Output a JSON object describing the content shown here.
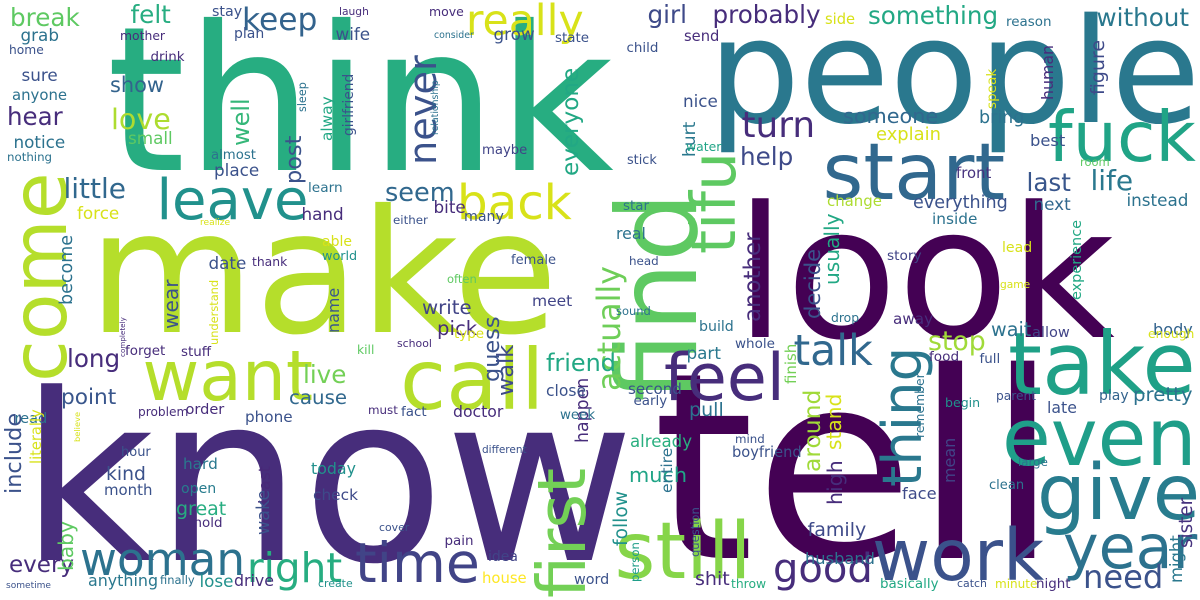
{
  "palette": [
    "#440154",
    "#3b528b",
    "#21918c",
    "#27ad81",
    "#5ec962",
    "#addc30",
    "#fde725"
  ],
  "words": [
    {
      "text": "think",
      "color": "#27ad81"
    },
    {
      "text": "people",
      "color": "#2a788e"
    },
    {
      "text": "make",
      "color": "#b5de2b"
    },
    {
      "text": "look",
      "color": "#440154"
    },
    {
      "text": "know",
      "color": "#472d7b"
    },
    {
      "text": "tell",
      "color": "#440154"
    },
    {
      "text": "start",
      "color": "#31688e"
    },
    {
      "text": "fuck",
      "color": "#20a486"
    },
    {
      "text": "take",
      "color": "#1fa187"
    },
    {
      "text": "even",
      "color": "#1f9e89"
    },
    {
      "text": "come",
      "color": "#b5de2b"
    },
    {
      "text": "call",
      "color": "#b5de2b"
    },
    {
      "text": "want",
      "color": "#b5de2b"
    },
    {
      "text": "find",
      "color": "#5ec962"
    },
    {
      "text": "work",
      "color": "#3b528b"
    },
    {
      "text": "give",
      "color": "#287c8e"
    },
    {
      "text": "still",
      "color": "#86d549"
    },
    {
      "text": "time",
      "color": "#414487"
    },
    {
      "text": "woman",
      "color": "#2c728e"
    },
    {
      "text": "year",
      "color": "#2c728e"
    },
    {
      "text": "first",
      "color": "#73d056"
    },
    {
      "text": "tifu",
      "color": "#5ec962"
    },
    {
      "text": "feel",
      "color": "#472d7b"
    },
    {
      "text": "never",
      "color": "#3b528b"
    },
    {
      "text": "back",
      "color": "#d8e219"
    },
    {
      "text": "leave",
      "color": "#21918c"
    },
    {
      "text": "thing",
      "color": "#2a788e"
    },
    {
      "text": "good",
      "color": "#472d7b"
    },
    {
      "text": "need",
      "color": "#3b528b"
    },
    {
      "text": "right",
      "color": "#27ad81"
    },
    {
      "text": "really",
      "color": "#d8e219"
    },
    {
      "text": "keep",
      "color": "#33638d"
    },
    {
      "text": "actually",
      "color": "#6ece58"
    },
    {
      "text": "talk",
      "color": "#31688e"
    },
    {
      "text": "stop",
      "color": "#a0da39"
    },
    {
      "text": "turn",
      "color": "#472d7b"
    },
    {
      "text": "seem",
      "color": "#31688e"
    },
    {
      "text": "much",
      "color": "#20a486"
    },
    {
      "text": "walk",
      "color": "#3e4a89"
    },
    {
      "text": "something",
      "color": "#22a884"
    },
    {
      "text": "without",
      "color": "#2a788e"
    },
    {
      "text": "probably",
      "color": "#472d7b"
    },
    {
      "text": "decide",
      "color": "#3b528b"
    },
    {
      "text": "another",
      "color": "#472d7b"
    },
    {
      "text": "around",
      "color": "#a0da39"
    },
    {
      "text": "someone",
      "color": "#31688e"
    },
    {
      "text": "love",
      "color": "#addc30"
    },
    {
      "text": "show",
      "color": "#33638d"
    },
    {
      "text": "friend",
      "color": "#22a884"
    },
    {
      "text": "little",
      "color": "#31688e"
    },
    {
      "text": "last",
      "color": "#39568c"
    },
    {
      "text": "life",
      "color": "#2a788e"
    },
    {
      "text": "mean",
      "color": "#414487"
    },
    {
      "text": "point",
      "color": "#39568c"
    },
    {
      "text": "cause",
      "color": "#31688e"
    },
    {
      "text": "live",
      "color": "#73d056"
    },
    {
      "text": "long",
      "color": "#472d7b"
    },
    {
      "text": "felt",
      "color": "#27ad81"
    },
    {
      "text": "girl",
      "color": "#3e4a89"
    },
    {
      "text": "help",
      "color": "#3e4a89"
    },
    {
      "text": "well",
      "color": "#35b779"
    },
    {
      "text": "alway",
      "color": "#22a884"
    },
    {
      "text": "name",
      "color": "#39568c"
    },
    {
      "text": "become",
      "color": "#2c728e"
    },
    {
      "text": "everyone",
      "color": "#22a884"
    },
    {
      "text": "happen",
      "color": "#472d7b"
    },
    {
      "text": "break",
      "color": "#5ec962"
    },
    {
      "text": "hear",
      "color": "#472d7b"
    },
    {
      "text": "every",
      "color": "#472d7b"
    },
    {
      "text": "everything",
      "color": "#3b528b"
    },
    {
      "text": "instead",
      "color": "#2c728e"
    },
    {
      "text": "next",
      "color": "#31688e"
    },
    {
      "text": "body",
      "color": "#33638d"
    },
    {
      "text": "wait",
      "color": "#2c728e"
    },
    {
      "text": "away",
      "color": "#472d7b"
    },
    {
      "text": "already",
      "color": "#29af7f"
    },
    {
      "text": "husband",
      "color": "#2c728e"
    },
    {
      "text": "family",
      "color": "#3e4a89"
    },
    {
      "text": "boyfriend",
      "color": "#3b528b"
    },
    {
      "text": "pretty",
      "color": "#2c728e"
    },
    {
      "text": "play",
      "color": "#33638d"
    },
    {
      "text": "second",
      "color": "#3b528b"
    },
    {
      "text": "write",
      "color": "#414487"
    },
    {
      "text": "pick",
      "color": "#472d7b"
    },
    {
      "text": "meet",
      "color": "#414487"
    },
    {
      "text": "maybe",
      "color": "#414487"
    },
    {
      "text": "kind",
      "color": "#3b528b"
    },
    {
      "text": "great",
      "color": "#27ad81"
    },
    {
      "text": "check",
      "color": "#3e4a89"
    },
    {
      "text": "today",
      "color": "#21918c"
    },
    {
      "text": "phone",
      "color": "#3b528b"
    },
    {
      "text": "open",
      "color": "#287c8e"
    },
    {
      "text": "hard",
      "color": "#2a788e"
    },
    {
      "text": "month",
      "color": "#3b528b"
    },
    {
      "text": "least",
      "color": "#482878"
    },
    {
      "text": "week",
      "color": "#2c728e"
    },
    {
      "text": "close",
      "color": "#3b528b"
    },
    {
      "text": "pull",
      "color": "#2c728e"
    },
    {
      "text": "part",
      "color": "#2a788e"
    },
    {
      "text": "whole",
      "color": "#3b528b"
    },
    {
      "text": "real",
      "color": "#2c728e"
    },
    {
      "text": "head",
      "color": "#3b528b"
    },
    {
      "text": "begin",
      "color": "#21918c"
    },
    {
      "text": "late",
      "color": "#3b528b"
    },
    {
      "text": "parent",
      "color": "#3b528b"
    },
    {
      "text": "face",
      "color": "#3e4a89"
    },
    {
      "text": "idea",
      "color": "#414487"
    },
    {
      "text": "house",
      "color": "#fde725"
    },
    {
      "text": "word",
      "color": "#3b528b"
    },
    {
      "text": "person",
      "color": "#1f9e89"
    },
    {
      "text": "shit",
      "color": "#472d7b"
    },
    {
      "text": "anything",
      "color": "#2a788e"
    },
    {
      "text": "lose",
      "color": "#21918c"
    },
    {
      "text": "drive",
      "color": "#472d7b"
    },
    {
      "text": "create",
      "color": "#21918c"
    },
    {
      "text": "throw",
      "color": "#27ad81"
    },
    {
      "text": "basically",
      "color": "#22a884"
    },
    {
      "text": "catch",
      "color": "#3b528b"
    },
    {
      "text": "minute",
      "color": "#d8e219"
    },
    {
      "text": "night",
      "color": "#472d7b"
    },
    {
      "text": "might",
      "color": "#2a788e"
    },
    {
      "text": "sister",
      "color": "#46327e"
    },
    {
      "text": "experience",
      "color": "#22a884"
    },
    {
      "text": "story",
      "color": "#414487"
    },
    {
      "text": "inside",
      "color": "#2c728e"
    },
    {
      "text": "front",
      "color": "#46327e"
    },
    {
      "text": "room",
      "color": "#5ec962"
    },
    {
      "text": "best",
      "color": "#3b528b"
    },
    {
      "text": "bring",
      "color": "#2c728e"
    },
    {
      "text": "figure",
      "color": "#3e4a89"
    },
    {
      "text": "human",
      "color": "#472d7b"
    },
    {
      "text": "explain",
      "color": "#d8e219"
    },
    {
      "text": "change",
      "color": "#addc30"
    },
    {
      "text": "usually",
      "color": "#22a884"
    },
    {
      "text": "drop",
      "color": "#2c728e"
    },
    {
      "text": "lead",
      "color": "#d8e219"
    },
    {
      "text": "game",
      "color": "#d8e219"
    },
    {
      "text": "allow",
      "color": "#414487"
    },
    {
      "text": "enough",
      "color": "#d8e219"
    },
    {
      "text": "food",
      "color": "#472d7b"
    },
    {
      "text": "full",
      "color": "#3b528b"
    },
    {
      "text": "finish",
      "color": "#73d056"
    },
    {
      "text": "stand",
      "color": "#d8e219"
    },
    {
      "text": "remember",
      "color": "#2c728e"
    },
    {
      "text": "mind",
      "color": "#3b528b"
    },
    {
      "text": "high",
      "color": "#472d7b"
    },
    {
      "text": "large",
      "color": "#2c728e"
    },
    {
      "text": "clean",
      "color": "#2c728e"
    },
    {
      "text": "early",
      "color": "#3b528b"
    },
    {
      "text": "entire",
      "color": "#2c728e"
    },
    {
      "text": "follow",
      "color": "#21918c"
    },
    {
      "text": "question",
      "color": "#3b528b"
    },
    {
      "text": "sound",
      "color": "#2c728e"
    },
    {
      "text": "build",
      "color": "#2c728e"
    },
    {
      "text": "type",
      "color": "#d8e219"
    },
    {
      "text": "female",
      "color": "#3b528b"
    },
    {
      "text": "star",
      "color": "#2c728e"
    },
    {
      "text": "hurt",
      "color": "#2a788e"
    },
    {
      "text": "water",
      "color": "#20a486"
    },
    {
      "text": "stick",
      "color": "#3b528b"
    },
    {
      "text": "nice",
      "color": "#3b528b"
    },
    {
      "text": "send",
      "color": "#472d7b"
    },
    {
      "text": "child",
      "color": "#3b528b"
    },
    {
      "text": "state",
      "color": "#3b528b"
    },
    {
      "text": "reason",
      "color": "#2c728e"
    },
    {
      "text": "speak",
      "color": "#d8e219"
    },
    {
      "text": "side",
      "color": "#d8e219"
    },
    {
      "text": "grow",
      "color": "#3b528b"
    },
    {
      "text": "consider",
      "color": "#2c728e"
    },
    {
      "text": "move",
      "color": "#472d7b"
    },
    {
      "text": "laugh",
      "color": "#472d7b"
    },
    {
      "text": "stay",
      "color": "#3b528b"
    },
    {
      "text": "plan",
      "color": "#3b528b"
    },
    {
      "text": "wife",
      "color": "#3b528b"
    },
    {
      "text": "sleep",
      "color": "#2c728e"
    },
    {
      "text": "post",
      "color": "#3b528b"
    },
    {
      "text": "relationship",
      "color": "#2c728e"
    },
    {
      "text": "girlfriend",
      "color": "#3b528b"
    },
    {
      "text": "mother",
      "color": "#472d7b"
    },
    {
      "text": "drink",
      "color": "#472d7b"
    },
    {
      "text": "grab",
      "color": "#2c728e"
    },
    {
      "text": "home",
      "color": "#3b528b"
    },
    {
      "text": "sure",
      "color": "#3b528b"
    },
    {
      "text": "anyone",
      "color": "#2c728e"
    },
    {
      "text": "notice",
      "color": "#2c728e"
    },
    {
      "text": "nothing",
      "color": "#2c728e"
    },
    {
      "text": "small",
      "color": "#5ec962"
    },
    {
      "text": "almost",
      "color": "#2c728e"
    },
    {
      "text": "place",
      "color": "#3b528b"
    },
    {
      "text": "learn",
      "color": "#2c728e"
    },
    {
      "text": "hand",
      "color": "#472d7b"
    },
    {
      "text": "world",
      "color": "#21918c"
    },
    {
      "text": "able",
      "color": "#d8e219"
    },
    {
      "text": "bite",
      "color": "#472d7b"
    },
    {
      "text": "many",
      "color": "#3b528b"
    },
    {
      "text": "either",
      "color": "#3b528b"
    },
    {
      "text": "force",
      "color": "#d8e219"
    },
    {
      "text": "realize",
      "color": "#d8e219"
    },
    {
      "text": "date",
      "color": "#3b528b"
    },
    {
      "text": "thank",
      "color": "#472d7b"
    },
    {
      "text": "often",
      "color": "#5ec962"
    },
    {
      "text": "wear",
      "color": "#3b528b"
    },
    {
      "text": "understand",
      "color": "#d8e219"
    },
    {
      "text": "completely",
      "color": "#472d7b"
    },
    {
      "text": "read",
      "color": "#2c728e"
    },
    {
      "text": "forget",
      "color": "#472d7b"
    },
    {
      "text": "stuff",
      "color": "#472d7b"
    },
    {
      "text": "school",
      "color": "#472d7b"
    },
    {
      "text": "kill",
      "color": "#5ec962"
    },
    {
      "text": "guess",
      "color": "#3b528b"
    },
    {
      "text": "problem",
      "color": "#472d7b"
    },
    {
      "text": "order",
      "color": "#472d7b"
    },
    {
      "text": "include",
      "color": "#3b528b"
    },
    {
      "text": "literally",
      "color": "#d8e219"
    },
    {
      "text": "believe",
      "color": "#d8e219"
    },
    {
      "text": "hour",
      "color": "#3b528b"
    },
    {
      "text": "wake",
      "color": "#3b528b"
    },
    {
      "text": "hold",
      "color": "#472d7b"
    },
    {
      "text": "baby",
      "color": "#5ec962"
    },
    {
      "text": "sometime",
      "color": "#3b528b"
    },
    {
      "text": "finally",
      "color": "#2c728e"
    },
    {
      "text": "cover",
      "color": "#3b528b"
    },
    {
      "text": "pain",
      "color": "#472d7b"
    },
    {
      "text": "must",
      "color": "#472d7b"
    },
    {
      "text": "fact",
      "color": "#3b528b"
    },
    {
      "text": "doctor",
      "color": "#472d7b"
    },
    {
      "text": "different",
      "color": "#3b528b"
    },
    {
      "text": "watch",
      "color": "#d8e219"
    }
  ]
}
